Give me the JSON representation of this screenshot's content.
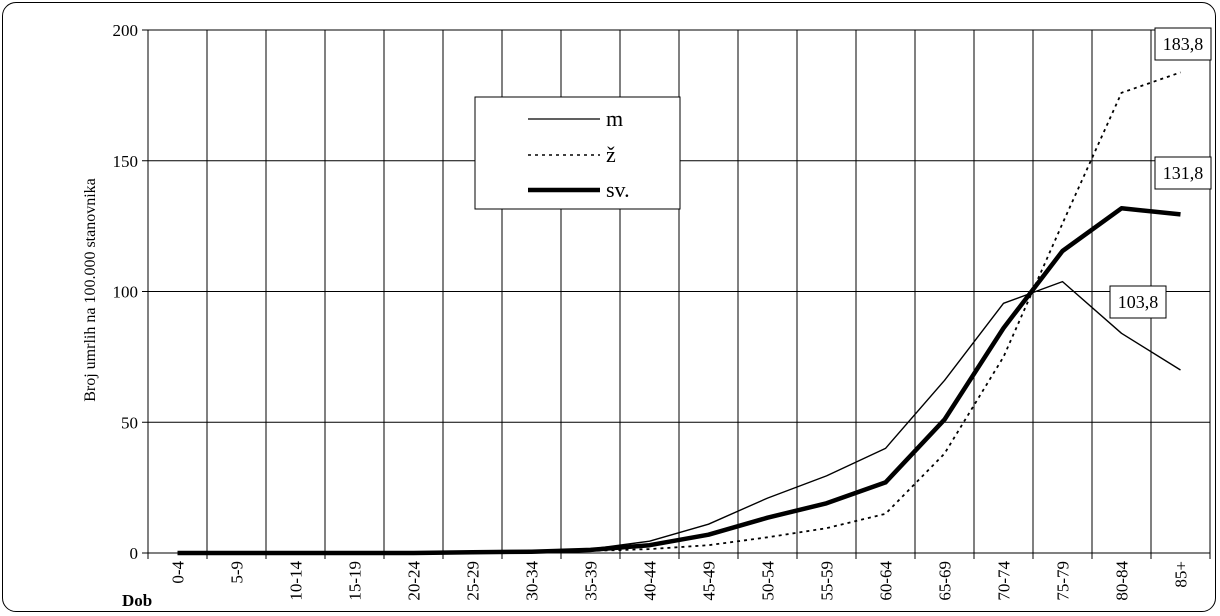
{
  "chart_data": {
    "type": "line",
    "ylabel": "Broj umrlih na 100.000 stanovnika",
    "xlabel": "Dob",
    "ylim": [
      0,
      200
    ],
    "yticks": [
      0,
      50,
      100,
      150,
      200
    ],
    "grid": true,
    "legend_position": "top-center",
    "categories": [
      "0-4",
      "5-9",
      "10-14",
      "15-19",
      "20-24",
      "25-29",
      "30-34",
      "35-39",
      "40-44",
      "45-49",
      "50-54",
      "55-59",
      "60-64",
      "65-69",
      "70-74",
      "75-79",
      "80-84",
      "85+"
    ],
    "series": [
      {
        "name": "m",
        "style": "thin-solid",
        "values": [
          0,
          0,
          0,
          0,
          0,
          0.3,
          0.6,
          1.5,
          4.5,
          11,
          21,
          29.5,
          40,
          66,
          95.5,
          103.8,
          84,
          70
        ]
      },
      {
        "name": "ž",
        "style": "dotted",
        "values": [
          0,
          0,
          0,
          0,
          0,
          0.2,
          0.3,
          0.8,
          1.5,
          3,
          6,
          9.5,
          15,
          38,
          75,
          126,
          176,
          183.8
        ]
      },
      {
        "name": "sv.",
        "style": "thick-solid",
        "values": [
          0,
          0,
          0,
          0,
          0,
          0.3,
          0.5,
          1.2,
          3,
          7,
          13.5,
          19,
          27,
          51,
          86,
          115.5,
          131.8,
          129.5
        ]
      }
    ],
    "annotations": [
      {
        "text": "183,8",
        "series": "ž",
        "category": "85+"
      },
      {
        "text": "131,8",
        "series": "sv.",
        "category": "80-84"
      },
      {
        "text": "103,8",
        "series": "m",
        "category": "75-79"
      }
    ]
  }
}
